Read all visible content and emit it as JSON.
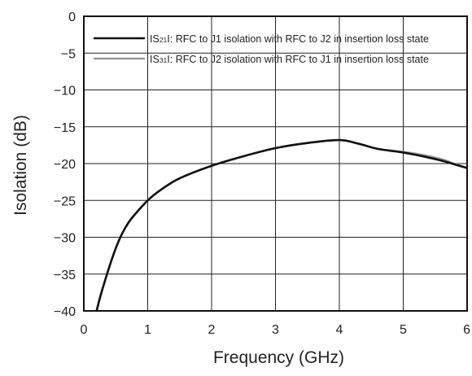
{
  "chart_data": {
    "type": "line",
    "xlabel": "Frequency (GHz)",
    "ylabel": "Isolation (dB)",
    "xlim": [
      0,
      6
    ],
    "ylim": [
      -40,
      0
    ],
    "xticks": [
      "0",
      "1",
      "2",
      "3",
      "4",
      "5",
      "6"
    ],
    "yticks": [
      "0",
      "−5",
      "−10",
      "−15",
      "−20",
      "−25",
      "−30",
      "−35",
      "−40"
    ],
    "grid": true,
    "legend_position": "top",
    "series": [
      {
        "name": "IS21I: RFC to J1 isolation with RFC to J2 in insertion loss state",
        "legend_prefix": "IS",
        "legend_sub": "21",
        "legend_rest": "I: RFC to J1 isolation with RFC to J2 in insertion loss state",
        "color": "#111111",
        "x": [
          0.2,
          0.25,
          0.3,
          0.4,
          0.5,
          0.6,
          0.7,
          0.8,
          1.0,
          1.2,
          1.5,
          2.0,
          2.5,
          3.0,
          3.5,
          4.0,
          4.3,
          4.6,
          5.0,
          5.3,
          5.6,
          5.8,
          6.0
        ],
        "y": [
          -40,
          -38.3,
          -36.8,
          -34.0,
          -31.5,
          -29.5,
          -28.0,
          -26.9,
          -25.0,
          -23.6,
          -22.0,
          -20.3,
          -19.0,
          -17.9,
          -17.2,
          -16.8,
          -17.3,
          -18.0,
          -18.5,
          -19.0,
          -19.6,
          -20.1,
          -20.6
        ]
      },
      {
        "name": "IS31I: RFC to J2 isolation with RFC to J1 in insertion loss state",
        "legend_prefix": "IS",
        "legend_sub": "31",
        "legend_rest": "I: RFC to J2 isolation with RFC to J1 in insertion loss state",
        "color": "#999999",
        "x": [
          0.2,
          0.25,
          0.3,
          0.4,
          0.5,
          0.6,
          0.7,
          0.8,
          1.0,
          1.2,
          1.5,
          2.0,
          2.5,
          3.0,
          3.5,
          4.0,
          4.3,
          4.6,
          5.0,
          5.3,
          5.6,
          5.8,
          6.0
        ],
        "y": [
          -40,
          -38.3,
          -36.8,
          -34.0,
          -31.5,
          -29.5,
          -28.0,
          -26.9,
          -25.0,
          -23.6,
          -22.0,
          -20.3,
          -19.0,
          -17.9,
          -17.2,
          -16.8,
          -17.3,
          -18.0,
          -18.4,
          -18.8,
          -19.4,
          -20.0,
          -20.6
        ]
      }
    ]
  }
}
